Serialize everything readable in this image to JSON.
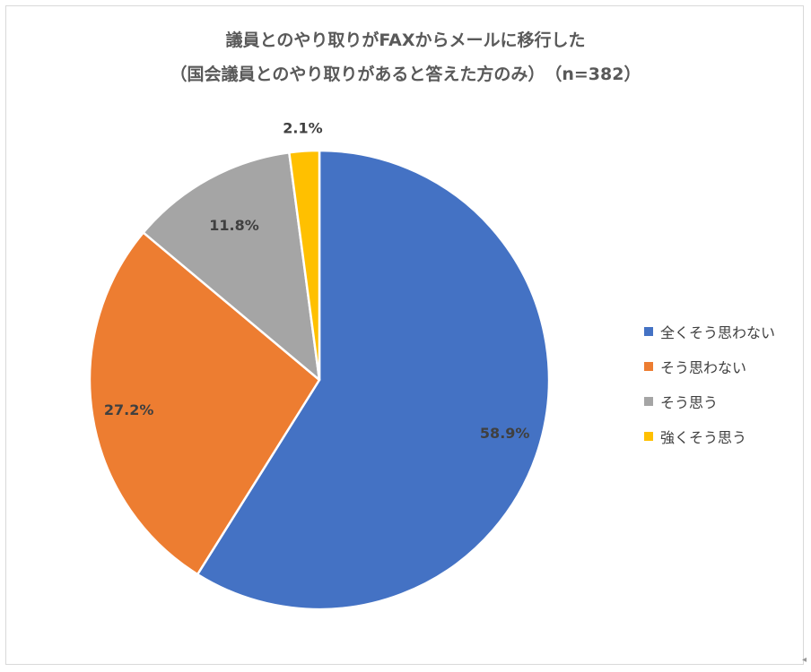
{
  "chart_data": {
    "type": "pie",
    "title": "議員とのやり取りがFAXからメールに移行した",
    "subtitle": "（国会議員とのやり取りがあると答えた方のみ）　（n=382）",
    "categories": [
      "全くそう思わない",
      "そう思わない",
      "そう思う",
      "強くそう思う"
    ],
    "values": [
      58.9,
      27.2,
      11.8,
      2.1
    ],
    "data_labels": [
      "58.9%",
      "27.2%",
      "11.8%",
      "2.1%"
    ],
    "colors": [
      "#4472C4",
      "#ED7D31",
      "#A5A5A5",
      "#FFC000"
    ],
    "start": "12 o'clock",
    "direction": "clockwise",
    "legend": "right"
  }
}
